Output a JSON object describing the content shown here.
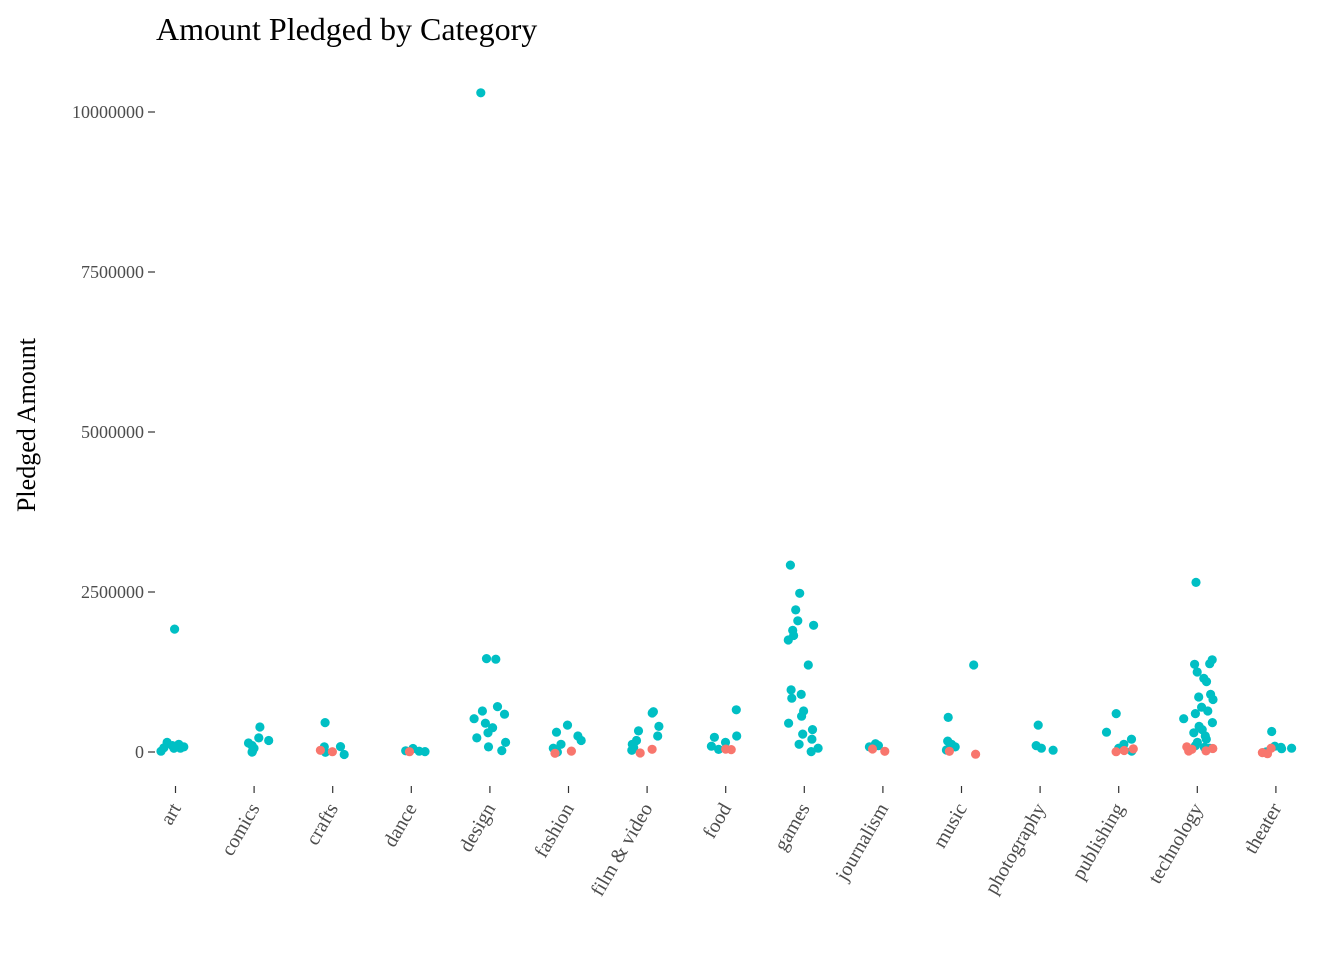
{
  "chart_data": {
    "type": "scatter",
    "title": "Amount Pledged by Category",
    "xlabel": "",
    "ylabel": "Pledged Amount",
    "ylim": [
      -500000,
      10500000
    ],
    "yticks": [
      0,
      2500000,
      5000000,
      7500000,
      10000000
    ],
    "ytick_labels": [
      "0",
      "2500000",
      "5000000",
      "7500000",
      "10000000"
    ],
    "categories": [
      "art",
      "comics",
      "crafts",
      "dance",
      "design",
      "fashion",
      "film & video",
      "food",
      "games",
      "journalism",
      "music",
      "photography",
      "publishing",
      "technology",
      "theater"
    ],
    "grid": false,
    "legend": "none",
    "colors": {
      "teal": "#00BFC4",
      "salmon": "#F8766D"
    },
    "series": [
      {
        "color": "teal",
        "points": [
          [
            "art",
            1920000
          ],
          [
            "art",
            150000
          ],
          [
            "art",
            120000
          ],
          [
            "art",
            100000
          ],
          [
            "art",
            80000
          ],
          [
            "art",
            60000
          ],
          [
            "art",
            40000
          ],
          [
            "art",
            20000
          ],
          [
            "art",
            5000
          ],
          [
            "comics",
            390000
          ],
          [
            "comics",
            220000
          ],
          [
            "comics",
            180000
          ],
          [
            "comics",
            140000
          ],
          [
            "comics",
            100000
          ],
          [
            "comics",
            60000
          ],
          [
            "comics",
            30000
          ],
          [
            "comics",
            10000
          ],
          [
            "crafts",
            460000
          ],
          [
            "crafts",
            80000
          ],
          [
            "crafts",
            50000
          ],
          [
            "crafts",
            20000
          ],
          [
            "crafts",
            5000
          ],
          [
            "dance",
            40000
          ],
          [
            "dance",
            25000
          ],
          [
            "dance",
            10000
          ],
          [
            "dance",
            5000
          ],
          [
            "design",
            10300000
          ],
          [
            "design",
            1460000
          ],
          [
            "design",
            1450000
          ],
          [
            "design",
            710000
          ],
          [
            "design",
            640000
          ],
          [
            "design",
            590000
          ],
          [
            "design",
            520000
          ],
          [
            "design",
            450000
          ],
          [
            "design",
            380000
          ],
          [
            "design",
            300000
          ],
          [
            "design",
            220000
          ],
          [
            "design",
            150000
          ],
          [
            "design",
            80000
          ],
          [
            "design",
            30000
          ],
          [
            "fashion",
            420000
          ],
          [
            "fashion",
            310000
          ],
          [
            "fashion",
            250000
          ],
          [
            "fashion",
            180000
          ],
          [
            "fashion",
            120000
          ],
          [
            "fashion",
            60000
          ],
          [
            "fashion",
            20000
          ],
          [
            "film & video",
            630000
          ],
          [
            "film & video",
            610000
          ],
          [
            "film & video",
            400000
          ],
          [
            "film & video",
            330000
          ],
          [
            "film & video",
            250000
          ],
          [
            "film & video",
            180000
          ],
          [
            "film & video",
            120000
          ],
          [
            "film & video",
            70000
          ],
          [
            "film & video",
            30000
          ],
          [
            "food",
            660000
          ],
          [
            "food",
            250000
          ],
          [
            "food",
            230000
          ],
          [
            "food",
            150000
          ],
          [
            "food",
            90000
          ],
          [
            "food",
            40000
          ],
          [
            "games",
            2920000
          ],
          [
            "games",
            2480000
          ],
          [
            "games",
            2220000
          ],
          [
            "games",
            2050000
          ],
          [
            "games",
            1980000
          ],
          [
            "games",
            1900000
          ],
          [
            "games",
            1820000
          ],
          [
            "games",
            1750000
          ],
          [
            "games",
            1360000
          ],
          [
            "games",
            970000
          ],
          [
            "games",
            900000
          ],
          [
            "games",
            840000
          ],
          [
            "games",
            640000
          ],
          [
            "games",
            560000
          ],
          [
            "games",
            450000
          ],
          [
            "games",
            350000
          ],
          [
            "games",
            280000
          ],
          [
            "games",
            200000
          ],
          [
            "games",
            120000
          ],
          [
            "games",
            60000
          ],
          [
            "games",
            20000
          ],
          [
            "journalism",
            130000
          ],
          [
            "journalism",
            100000
          ],
          [
            "journalism",
            80000
          ],
          [
            "music",
            1360000
          ],
          [
            "music",
            540000
          ],
          [
            "music",
            170000
          ],
          [
            "music",
            120000
          ],
          [
            "music",
            80000
          ],
          [
            "music",
            40000
          ],
          [
            "photography",
            420000
          ],
          [
            "photography",
            100000
          ],
          [
            "photography",
            60000
          ],
          [
            "photography",
            30000
          ],
          [
            "publishing",
            600000
          ],
          [
            "publishing",
            310000
          ],
          [
            "publishing",
            200000
          ],
          [
            "publishing",
            120000
          ],
          [
            "publishing",
            60000
          ],
          [
            "publishing",
            30000
          ],
          [
            "technology",
            2650000
          ],
          [
            "technology",
            1440000
          ],
          [
            "technology",
            1380000
          ],
          [
            "technology",
            1370000
          ],
          [
            "technology",
            1250000
          ],
          [
            "technology",
            1150000
          ],
          [
            "technology",
            1100000
          ],
          [
            "technology",
            900000
          ],
          [
            "technology",
            860000
          ],
          [
            "technology",
            820000
          ],
          [
            "technology",
            700000
          ],
          [
            "technology",
            640000
          ],
          [
            "technology",
            600000
          ],
          [
            "technology",
            520000
          ],
          [
            "technology",
            460000
          ],
          [
            "technology",
            400000
          ],
          [
            "technology",
            350000
          ],
          [
            "technology",
            300000
          ],
          [
            "technology",
            250000
          ],
          [
            "technology",
            200000
          ],
          [
            "technology",
            150000
          ],
          [
            "technology",
            100000
          ],
          [
            "technology",
            60000
          ],
          [
            "technology",
            30000
          ],
          [
            "theater",
            320000
          ],
          [
            "theater",
            90000
          ],
          [
            "theater",
            60000
          ],
          [
            "theater",
            40000
          ],
          [
            "theater",
            20000
          ],
          [
            "theater",
            5000
          ]
        ]
      },
      {
        "color": "salmon",
        "points": [
          [
            "crafts",
            10000
          ],
          [
            "crafts",
            3000
          ],
          [
            "dance",
            5000
          ],
          [
            "fashion",
            15000
          ],
          [
            "fashion",
            5000
          ],
          [
            "film & video",
            10000
          ],
          [
            "film & video",
            3000
          ],
          [
            "food",
            20000
          ],
          [
            "food",
            5000
          ],
          [
            "journalism",
            10000
          ],
          [
            "journalism",
            5000
          ],
          [
            "music",
            10000
          ],
          [
            "music",
            5000
          ],
          [
            "publishing",
            20000
          ],
          [
            "publishing",
            10000
          ],
          [
            "publishing",
            3000
          ],
          [
            "technology",
            80000
          ],
          [
            "technology",
            50000
          ],
          [
            "technology",
            20000
          ],
          [
            "technology",
            10000
          ],
          [
            "technology",
            3000
          ],
          [
            "theater",
            60000
          ],
          [
            "theater",
            30000
          ],
          [
            "theater",
            10000
          ]
        ]
      }
    ]
  }
}
